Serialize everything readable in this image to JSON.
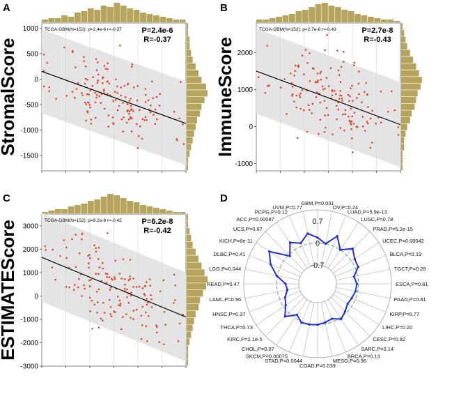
{
  "figure": {
    "colors": {
      "scatter_point": "#d9442b",
      "regression_line": "#000000",
      "ci_band": "#e4e4e4",
      "histogram": "#b5a45c",
      "radar_line": "#1f2fd1",
      "radar_ring": "#5a9e8f",
      "grid": "#b8b8b8"
    }
  },
  "chart_data": [
    {
      "panel_id": "panel-a",
      "type": "scatter",
      "panel_label": "A",
      "ylabel": "StromalScore",
      "subtitle": "TCGA-GBM(N=152): p=2.4e-6 r=-0.37",
      "p_label": "P=2.4e-6",
      "r_label": "R=-0.37",
      "ylim": [
        -1800,
        1100
      ],
      "yticks": [
        1000,
        500,
        0,
        -500,
        -1000,
        -1500
      ],
      "xlim": [
        0,
        1
      ],
      "regression": {
        "intercept": 150,
        "slope": -1020
      },
      "band_halfwidth": 820,
      "top_hist": [
        2,
        3,
        3,
        5,
        4,
        7,
        8,
        10,
        9,
        12,
        11,
        14,
        12,
        10,
        9,
        7,
        6,
        5,
        4,
        3,
        2,
        2
      ],
      "right_hist": [
        1,
        1,
        2,
        2,
        3,
        4,
        6,
        8,
        10,
        13,
        14,
        12,
        10,
        9,
        7,
        6,
        5,
        4,
        3,
        2,
        1,
        1
      ],
      "seed": 11
    },
    {
      "panel_id": "panel-b",
      "type": "scatter",
      "panel_label": "B",
      "ylabel": "ImmuneScore",
      "subtitle": "TCGA-GBM(N=152): p=2.7e-8 r=-0.43",
      "p_label": "P=2.7e-8",
      "r_label": "R=-0.43",
      "ylim": [
        -1200,
        2800
      ],
      "yticks": [
        2000,
        1000,
        0,
        -1000
      ],
      "xlim": [
        0,
        1
      ],
      "regression": {
        "intercept": 1500,
        "slope": -1450
      },
      "band_halfwidth": 1150,
      "top_hist": [
        2,
        2,
        3,
        4,
        5,
        6,
        8,
        9,
        11,
        13,
        14,
        12,
        11,
        9,
        8,
        6,
        5,
        4,
        3,
        2,
        2,
        1
      ],
      "right_hist": [
        1,
        2,
        3,
        4,
        6,
        8,
        10,
        12,
        14,
        13,
        11,
        10,
        9,
        7,
        6,
        4,
        3,
        2,
        2,
        1,
        1,
        1
      ],
      "seed": 23
    },
    {
      "panel_id": "panel-c",
      "type": "scatter",
      "panel_label": "C",
      "ylabel": "ESTIMATEScore",
      "subtitle": "TCGA-GBM(N=152): p=6.2e-8 r=-0.42",
      "p_label": "P=6.2e-8",
      "r_label": "R=-0.42",
      "ylim": [
        -3000,
        3500
      ],
      "yticks": [
        3000,
        2000,
        1000,
        0,
        -1000,
        -2000,
        -3000
      ],
      "xlim": [
        0,
        1
      ],
      "regression": {
        "intercept": 1650,
        "slope": -2550
      },
      "band_halfwidth": 1900,
      "top_hist": [
        1,
        2,
        3,
        3,
        5,
        6,
        7,
        9,
        10,
        12,
        14,
        13,
        11,
        9,
        8,
        6,
        5,
        4,
        3,
        2,
        1,
        1
      ],
      "right_hist": [
        1,
        1,
        2,
        3,
        4,
        6,
        8,
        10,
        12,
        14,
        13,
        11,
        9,
        8,
        6,
        5,
        4,
        3,
        2,
        1,
        1,
        1
      ],
      "seed": 37
    },
    {
      "panel_id": "panel-d",
      "type": "radar",
      "panel_label": "D",
      "rlim": [
        -1.3,
        1.05
      ],
      "ring_labels": [
        {
          "value": 0.7,
          "label": "0.7"
        },
        {
          "value": 0,
          "label": "0"
        },
        {
          "value": -0.7,
          "label": "-0.7"
        }
      ],
      "categories": [
        {
          "label": "GBM,P=0.031",
          "value": 0.17
        },
        {
          "label": "OV,P=0.24",
          "value": 0.0
        },
        {
          "label": "LUAD,P=5.9e-13",
          "value": 0.34
        },
        {
          "label": "LUSC,P=0.78",
          "value": 0.0
        },
        {
          "label": "PRAD,P=5.2e-15",
          "value": 0.28
        },
        {
          "label": "UCEC,P=0.00042",
          "value": 0.12
        },
        {
          "label": "BLCA,P=0.19",
          "value": 0.1
        },
        {
          "label": "TGCT,P=0.28",
          "value": -0.12
        },
        {
          "label": "ESCA,P=0.81",
          "value": -0.05
        },
        {
          "label": "PAAD,P=0.81",
          "value": -0.07
        },
        {
          "label": "KIRP,P=0.77",
          "value": -0.12
        },
        {
          "label": "LIHC,P=0.20",
          "value": -0.15
        },
        {
          "label": "CESC,P=0.82",
          "value": -0.06
        },
        {
          "label": "SARC,P=0.14",
          "value": 0.05
        },
        {
          "label": "BRCA,P=0.13",
          "value": -0.1
        },
        {
          "label": "MESO,P=0.96",
          "value": -0.05
        },
        {
          "label": "COAD,P=0.039",
          "value": 0.0
        },
        {
          "label": "STAD,P=0.0044",
          "value": 0.02
        },
        {
          "label": "SKCM,P=0.00075",
          "value": 0.04
        },
        {
          "label": "CHOL,P=0.97",
          "value": -0.12
        },
        {
          "label": "KIRC,P=2.1e-5",
          "value": 0.17
        },
        {
          "label": "THCA,P=0.73",
          "value": -0.08
        },
        {
          "label": "HNSC,P=0.37",
          "value": -0.18
        },
        {
          "label": "LAML,P=0.96",
          "value": -0.32
        },
        {
          "label": "READ,P=0.47",
          "value": -0.28
        },
        {
          "label": "LGG,P=0.044",
          "value": 0.03
        },
        {
          "label": "DLBC,P=0.41",
          "value": 0.32
        },
        {
          "label": "KICH,P=6e-11",
          "value": 0.55
        },
        {
          "label": "UCS,P=0.67",
          "value": -0.05
        },
        {
          "label": "ACC,P=0.00087",
          "value": 0.28
        },
        {
          "label": "PCPG,P=0.12",
          "value": 0.1
        },
        {
          "label": "UVM,P=0.77",
          "value": 0.33
        }
      ]
    }
  ]
}
